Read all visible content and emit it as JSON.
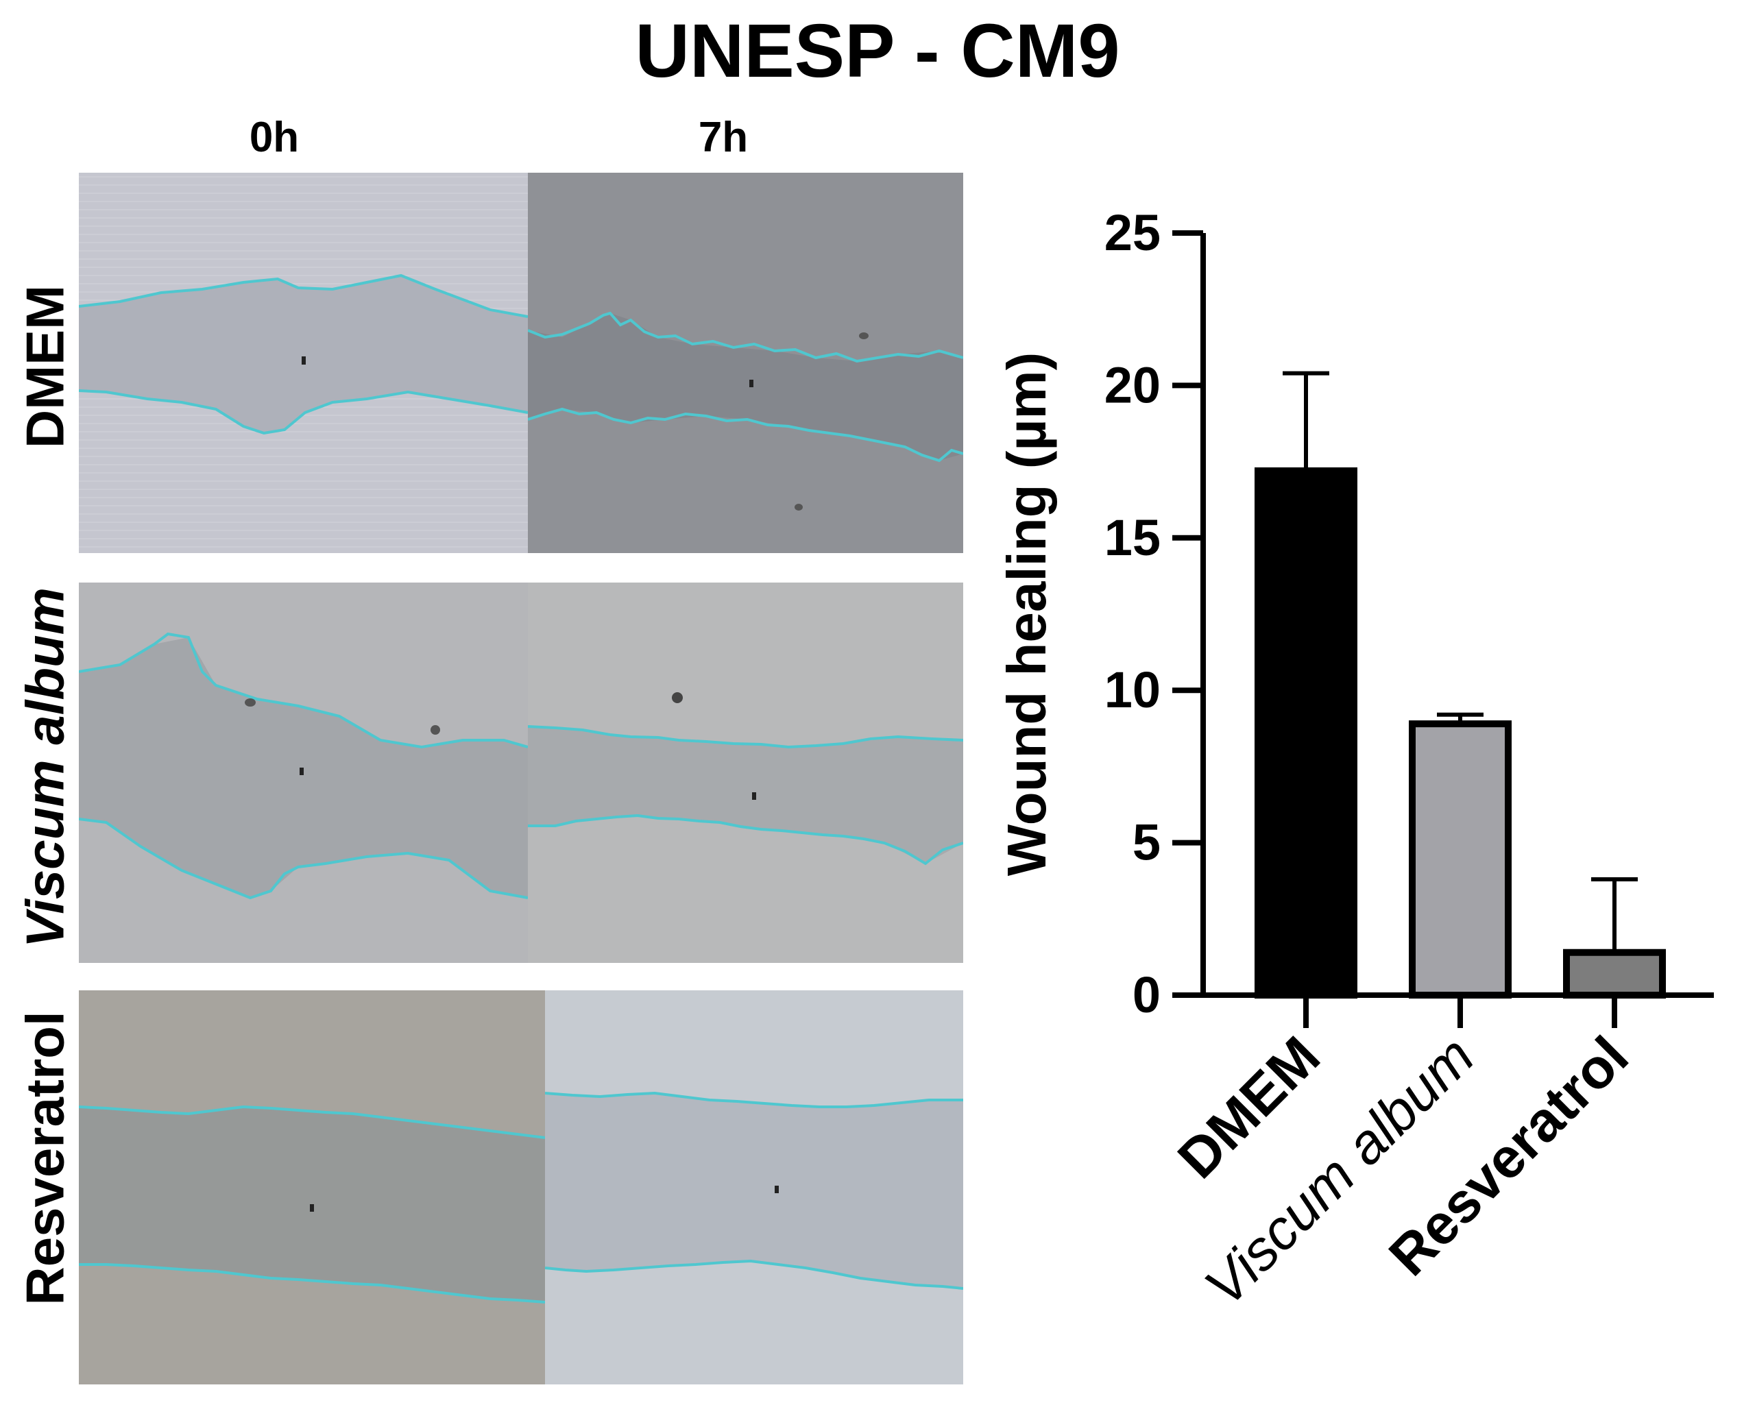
{
  "title": "UNESP - CM9",
  "micrographs": {
    "columns": [
      "0h",
      "7h"
    ],
    "rows": [
      {
        "label": "DMEM",
        "italic": false
      },
      {
        "label": "Viscum album",
        "italic": true
      },
      {
        "label": "Resveratrol",
        "italic": false
      }
    ]
  },
  "colors": {
    "wound_outline": "#4fc7cf",
    "bar_dmem": "#000000",
    "bar_viscum": "#a3a3a8",
    "bar_resveratrol": "#7d7d7d"
  },
  "chart_data": {
    "type": "bar",
    "categories": [
      "DMEM",
      "Viscum album",
      "Resveratrol"
    ],
    "category_style": [
      "bold",
      "italic",
      "bold"
    ],
    "values": [
      17.2,
      8.9,
      1.4
    ],
    "error": [
      3.2,
      0.3,
      2.4
    ],
    "ylabel": "Wound healing (µm)",
    "ylim": [
      0,
      25
    ],
    "yticks": [
      0,
      5,
      10,
      15,
      20,
      25
    ],
    "grid": false
  }
}
